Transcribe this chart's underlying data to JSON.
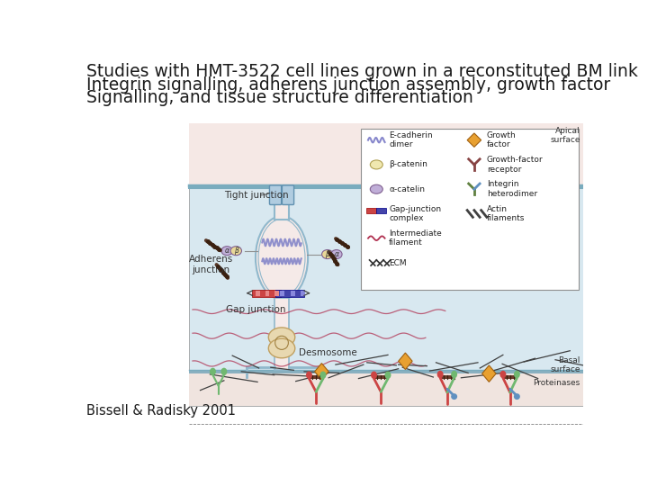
{
  "title_lines": [
    "Studies with HMT-3522 cell lines grown in a reconstituted BM link",
    "Integrin signalling, adherens junction assembly, growth factor",
    "Signalling, and tissue structure differentiation"
  ],
  "citation": "Bissell & Radisky 2001",
  "title_fontsize": 13.5,
  "citation_fontsize": 10.5,
  "bg_color": "#ffffff",
  "title_color": "#1a1a1a",
  "citation_color": "#1a1a1a",
  "diagram_bg_pink": "#f5e8e5",
  "diagram_bg_blue": "#d8e8f0",
  "diagram_border": "#a0a0a0",
  "cell_body_color": "#f5eae8",
  "cell_border_color": "#90b8cc",
  "tube_color": "#b0cce0",
  "basal_strip_color": "#8ab0c0",
  "gap_red": "#cc4444",
  "gap_blue": "#4444aa",
  "desmo_color": "#e8d8b0",
  "intermediate_color": "#b03050",
  "actin_color": "#404040"
}
